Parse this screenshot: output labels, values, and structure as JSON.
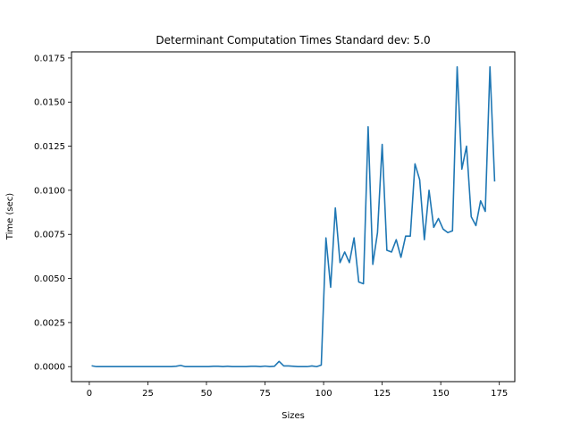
{
  "chart_data": {
    "type": "line",
    "title": "Determinant Computation Times Standard dev: 5.0",
    "xlabel": "Sizes",
    "ylabel": "Time (sec)",
    "xlim": [
      -7.6,
      181.6
    ],
    "ylim": [
      -0.00085,
      0.01785
    ],
    "x_ticks": [
      0,
      25,
      50,
      75,
      100,
      125,
      150,
      175
    ],
    "x_tick_labels": [
      "0",
      "25",
      "50",
      "75",
      "100",
      "125",
      "150",
      "175"
    ],
    "y_ticks": [
      0.0,
      0.0025,
      0.005,
      0.0075,
      0.01,
      0.0125,
      0.015,
      0.0175
    ],
    "y_tick_labels": [
      "0.0000",
      "0.0025",
      "0.0050",
      "0.0075",
      "0.0100",
      "0.0125",
      "0.0150",
      "0.0175"
    ],
    "grid": false,
    "line_color": "#1f77b4",
    "series": [
      {
        "x": [
          1,
          3,
          5,
          7,
          9,
          11,
          13,
          15,
          17,
          19,
          21,
          23,
          25,
          27,
          29,
          31,
          33,
          35,
          37,
          39,
          41,
          43,
          45,
          47,
          49,
          51,
          53,
          55,
          57,
          59,
          61,
          63,
          65,
          67,
          69,
          71,
          73,
          75,
          77,
          79,
          81,
          83,
          85,
          87,
          89,
          91,
          93,
          95,
          97,
          99,
          101,
          103,
          105,
          107,
          109,
          111,
          113,
          115,
          117,
          119,
          121,
          123,
          125,
          127,
          129,
          131,
          133,
          135,
          137,
          139,
          141,
          143,
          145,
          147,
          149,
          151,
          153,
          155,
          157,
          159,
          161,
          163,
          165,
          167,
          169,
          171,
          173
        ],
        "y": [
          5e-05,
          0.0,
          0.0,
          0.0,
          0.0,
          0.0,
          0.0,
          0.0,
          0.0,
          0.0,
          0.0,
          0.0,
          0.0,
          0.0,
          0.0,
          0.0,
          0.0,
          0.0,
          2e-05,
          7e-05,
          0.0,
          0.0,
          0.0,
          0.0,
          0.0,
          0.0,
          2e-05,
          2e-05,
          0.0,
          2e-05,
          0.0,
          0.0,
          0.0,
          0.0,
          2e-05,
          2e-05,
          0.0,
          3e-05,
          0.0,
          2e-05,
          0.0003,
          4e-05,
          4e-05,
          2e-05,
          0.0,
          0.0,
          0.0,
          4e-05,
          0.0,
          9e-05,
          0.0073,
          0.0045,
          0.009,
          0.0059,
          0.0065,
          0.0059,
          0.0073,
          0.0048,
          0.0047,
          0.0136,
          0.0058,
          0.0076,
          0.0126,
          0.0066,
          0.0065,
          0.0072,
          0.0062,
          0.0074,
          0.0074,
          0.0115,
          0.0106,
          0.0072,
          0.01,
          0.0079,
          0.0084,
          0.0078,
          0.0076,
          0.0077,
          0.017,
          0.0112,
          0.0125,
          0.0085,
          0.008,
          0.0094,
          0.0088,
          0.017,
          0.0105
        ]
      }
    ]
  }
}
